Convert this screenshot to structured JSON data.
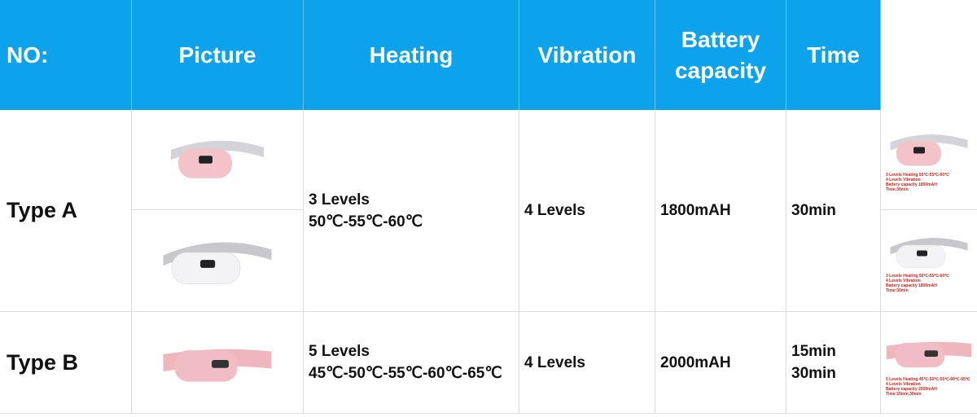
{
  "header": {
    "columns": [
      "NO:",
      "Picture",
      "Heating",
      "Vibration",
      "Battery capacity",
      "Time"
    ]
  },
  "rows": [
    {
      "no": "Type A",
      "heating": [
        "3 Levels",
        "50℃-55℃-60℃"
      ],
      "vibration": "4 Levels",
      "battery": "1800mAH",
      "time": [
        "30min"
      ],
      "thumbnails": [
        [
          "3 Levels Heating  50℃-55℃-60℃",
          "4 Levels Vibration",
          "Battery capacity  1800mAH",
          "Time:30min"
        ],
        [
          "3 Levels Heating  50℃-55℃-60℃",
          "4 Levels Vibration",
          "Battery capacity  1800mAH",
          "Time:30min"
        ]
      ]
    },
    {
      "no": "Type B",
      "heating": [
        "5 Levels",
        "45℃-50℃-55℃-60℃-65℃"
      ],
      "vibration": "4 Levels",
      "battery": "2000mAH",
      "time": [
        "15min",
        "30min"
      ],
      "thumbnails": [
        [
          "5 Levels Heating  45℃-50℃-55℃-60℃-65℃",
          "4 Levels Vibration",
          "Battery capacity  2000mAH",
          "Time:15min,30min"
        ]
      ]
    }
  ]
}
